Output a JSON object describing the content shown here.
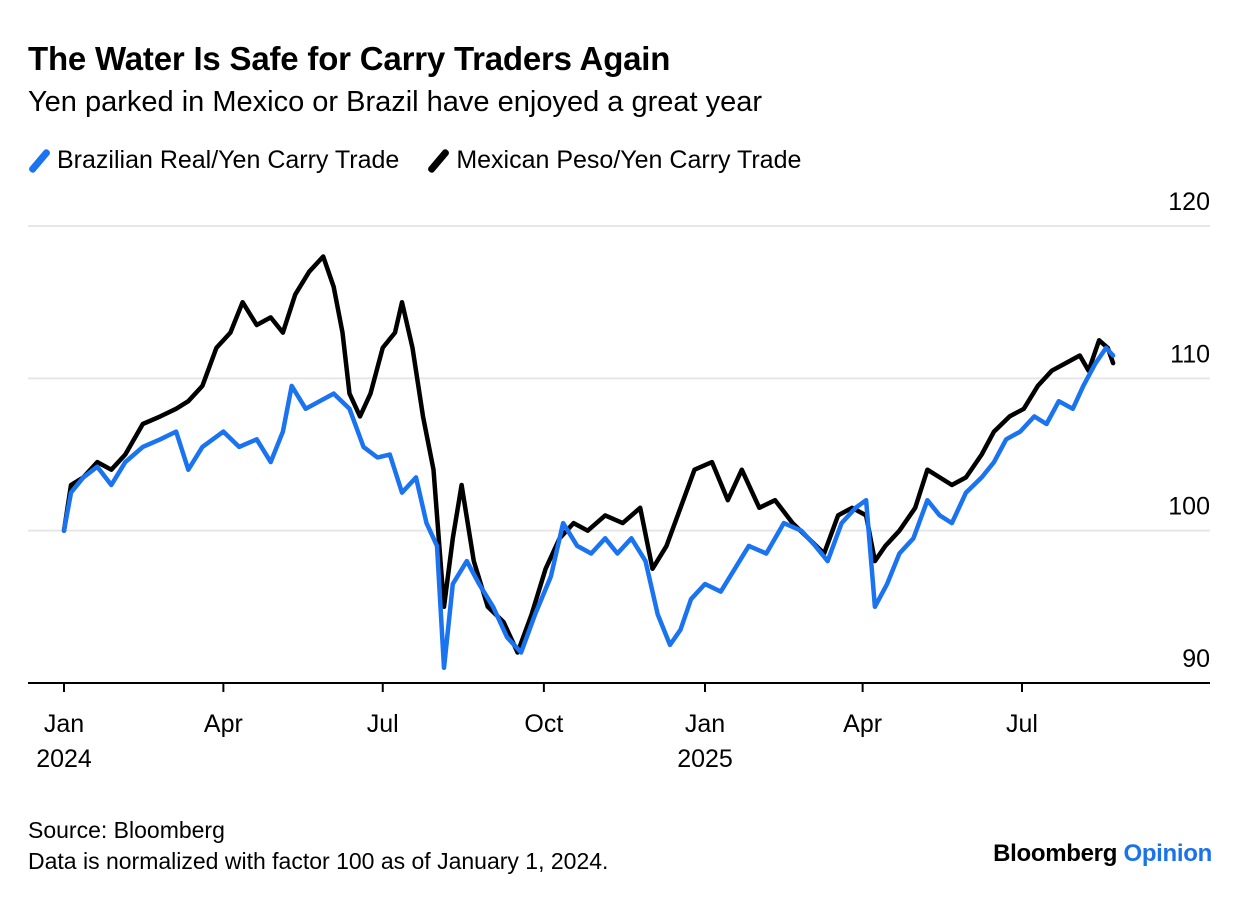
{
  "header": {
    "title": "The Water Is Safe for Carry Traders Again",
    "subtitle": "Yen parked in Mexico or Brazil have enjoyed a great year"
  },
  "legend": {
    "items": [
      {
        "label": "Brazilian Real/Yen Carry Trade",
        "color": "#1a73f0"
      },
      {
        "label": "Mexican Peso/Yen Carry Trade",
        "color": "#000000"
      }
    ]
  },
  "footer": {
    "source": "Source: Bloomberg",
    "note": "Data is normalized with factor 100 as of January 1, 2024.",
    "brand_main": "Bloomberg",
    "brand_accent": "Opinion"
  },
  "chart_data": {
    "type": "line",
    "title": "The Water Is Safe for Carry Traders Again",
    "subtitle": "Yen parked in Mexico or Brazil have enjoyed a great year",
    "xlabel": "",
    "ylabel": "",
    "ylim": [
      90,
      120
    ],
    "yticks": [
      90,
      100,
      110,
      120
    ],
    "xlim": [
      "2024-01-01",
      "2025-10-01"
    ],
    "xticks": [
      {
        "date": "2024-01-01",
        "label": "Jan",
        "year": "2024"
      },
      {
        "date": "2024-04-01",
        "label": "Apr",
        "year": ""
      },
      {
        "date": "2024-07-01",
        "label": "Jul",
        "year": ""
      },
      {
        "date": "2024-10-01",
        "label": "Oct",
        "year": ""
      },
      {
        "date": "2025-01-01",
        "label": "Jan",
        "year": "2025"
      },
      {
        "date": "2025-04-01",
        "label": "Apr",
        "year": ""
      },
      {
        "date": "2025-07-01",
        "label": "Jul",
        "year": ""
      }
    ],
    "grid": true,
    "legend_position": "top-left",
    "series": [
      {
        "name": "Brazilian Real/Yen Carry Trade",
        "color": "#1a73f0",
        "points": [
          [
            "2024-01-01",
            100.0
          ],
          [
            "2024-01-05",
            102.5
          ],
          [
            "2024-01-12",
            103.5
          ],
          [
            "2024-01-20",
            104.2
          ],
          [
            "2024-01-28",
            103.0
          ],
          [
            "2024-02-05",
            104.5
          ],
          [
            "2024-02-15",
            105.5
          ],
          [
            "2024-02-25",
            106.0
          ],
          [
            "2024-03-05",
            106.5
          ],
          [
            "2024-03-12",
            104.0
          ],
          [
            "2024-03-20",
            105.5
          ],
          [
            "2024-04-01",
            106.5
          ],
          [
            "2024-04-10",
            105.5
          ],
          [
            "2024-04-20",
            106.0
          ],
          [
            "2024-04-28",
            104.5
          ],
          [
            "2024-05-05",
            106.5
          ],
          [
            "2024-05-10",
            109.5
          ],
          [
            "2024-05-18",
            108.0
          ],
          [
            "2024-05-26",
            108.5
          ],
          [
            "2024-06-03",
            109.0
          ],
          [
            "2024-06-12",
            108.0
          ],
          [
            "2024-06-20",
            105.5
          ],
          [
            "2024-06-28",
            104.8
          ],
          [
            "2024-07-05",
            105.0
          ],
          [
            "2024-07-12",
            102.5
          ],
          [
            "2024-07-20",
            103.5
          ],
          [
            "2024-07-26",
            100.5
          ],
          [
            "2024-08-01",
            99.0
          ],
          [
            "2024-08-05",
            91.0
          ],
          [
            "2024-08-10",
            96.5
          ],
          [
            "2024-08-18",
            98.0
          ],
          [
            "2024-08-25",
            96.5
          ],
          [
            "2024-09-02",
            95.0
          ],
          [
            "2024-09-10",
            93.0
          ],
          [
            "2024-09-18",
            92.0
          ],
          [
            "2024-09-26",
            94.5
          ],
          [
            "2024-10-05",
            97.0
          ],
          [
            "2024-10-12",
            100.5
          ],
          [
            "2024-10-20",
            99.0
          ],
          [
            "2024-10-28",
            98.5
          ],
          [
            "2024-11-05",
            99.5
          ],
          [
            "2024-11-12",
            98.5
          ],
          [
            "2024-11-20",
            99.5
          ],
          [
            "2024-11-28",
            98.0
          ],
          [
            "2024-12-05",
            94.5
          ],
          [
            "2024-12-12",
            92.5
          ],
          [
            "2024-12-18",
            93.5
          ],
          [
            "2024-12-24",
            95.5
          ],
          [
            "2025-01-01",
            96.5
          ],
          [
            "2025-01-10",
            96.0
          ],
          [
            "2025-01-18",
            97.5
          ],
          [
            "2025-01-26",
            99.0
          ],
          [
            "2025-02-05",
            98.5
          ],
          [
            "2025-02-15",
            100.5
          ],
          [
            "2025-02-25",
            100.0
          ],
          [
            "2025-03-05",
            99.0
          ],
          [
            "2025-03-12",
            98.0
          ],
          [
            "2025-03-20",
            100.5
          ],
          [
            "2025-03-28",
            101.5
          ],
          [
            "2025-04-03",
            102.0
          ],
          [
            "2025-04-08",
            95.0
          ],
          [
            "2025-04-15",
            96.5
          ],
          [
            "2025-04-22",
            98.5
          ],
          [
            "2025-04-30",
            99.5
          ],
          [
            "2025-05-08",
            102.0
          ],
          [
            "2025-05-15",
            101.0
          ],
          [
            "2025-05-22",
            100.5
          ],
          [
            "2025-05-30",
            102.5
          ],
          [
            "2025-06-08",
            103.5
          ],
          [
            "2025-06-15",
            104.5
          ],
          [
            "2025-06-22",
            106.0
          ],
          [
            "2025-06-30",
            106.5
          ],
          [
            "2025-07-08",
            107.5
          ],
          [
            "2025-07-15",
            107.0
          ],
          [
            "2025-07-22",
            108.5
          ],
          [
            "2025-07-30",
            108.0
          ],
          [
            "2025-08-05",
            109.5
          ],
          [
            "2025-08-12",
            111.0
          ],
          [
            "2025-08-18",
            112.0
          ],
          [
            "2025-08-22",
            111.5
          ]
        ]
      },
      {
        "name": "Mexican Peso/Yen Carry Trade",
        "color": "#000000",
        "points": [
          [
            "2024-01-01",
            100.0
          ],
          [
            "2024-01-05",
            103.0
          ],
          [
            "2024-01-12",
            103.5
          ],
          [
            "2024-01-20",
            104.5
          ],
          [
            "2024-01-28",
            104.0
          ],
          [
            "2024-02-05",
            105.0
          ],
          [
            "2024-02-15",
            107.0
          ],
          [
            "2024-02-25",
            107.5
          ],
          [
            "2024-03-05",
            108.0
          ],
          [
            "2024-03-12",
            108.5
          ],
          [
            "2024-03-20",
            109.5
          ],
          [
            "2024-03-28",
            112.0
          ],
          [
            "2024-04-05",
            113.0
          ],
          [
            "2024-04-12",
            115.0
          ],
          [
            "2024-04-20",
            113.5
          ],
          [
            "2024-04-28",
            114.0
          ],
          [
            "2024-05-05",
            113.0
          ],
          [
            "2024-05-12",
            115.5
          ],
          [
            "2024-05-20",
            117.0
          ],
          [
            "2024-05-28",
            118.0
          ],
          [
            "2024-06-03",
            116.0
          ],
          [
            "2024-06-08",
            113.0
          ],
          [
            "2024-06-12",
            109.0
          ],
          [
            "2024-06-18",
            107.5
          ],
          [
            "2024-06-24",
            109.0
          ],
          [
            "2024-07-01",
            112.0
          ],
          [
            "2024-07-08",
            113.0
          ],
          [
            "2024-07-12",
            115.0
          ],
          [
            "2024-07-18",
            112.0
          ],
          [
            "2024-07-24",
            107.5
          ],
          [
            "2024-07-30",
            104.0
          ],
          [
            "2024-08-05",
            95.0
          ],
          [
            "2024-08-10",
            99.5
          ],
          [
            "2024-08-15",
            103.0
          ],
          [
            "2024-08-22",
            98.0
          ],
          [
            "2024-08-30",
            95.0
          ],
          [
            "2024-09-08",
            94.0
          ],
          [
            "2024-09-16",
            92.0
          ],
          [
            "2024-09-24",
            94.5
          ],
          [
            "2024-10-02",
            97.5
          ],
          [
            "2024-10-10",
            99.5
          ],
          [
            "2024-10-18",
            100.5
          ],
          [
            "2024-10-26",
            100.0
          ],
          [
            "2024-11-05",
            101.0
          ],
          [
            "2024-11-15",
            100.5
          ],
          [
            "2024-11-25",
            101.5
          ],
          [
            "2024-12-02",
            97.5
          ],
          [
            "2024-12-10",
            99.0
          ],
          [
            "2024-12-18",
            101.5
          ],
          [
            "2024-12-26",
            104.0
          ],
          [
            "2025-01-05",
            104.5
          ],
          [
            "2025-01-14",
            102.0
          ],
          [
            "2025-01-22",
            104.0
          ],
          [
            "2025-02-01",
            101.5
          ],
          [
            "2025-02-10",
            102.0
          ],
          [
            "2025-02-20",
            100.5
          ],
          [
            "2025-03-01",
            99.5
          ],
          [
            "2025-03-10",
            98.5
          ],
          [
            "2025-03-18",
            101.0
          ],
          [
            "2025-03-26",
            101.5
          ],
          [
            "2025-04-03",
            101.0
          ],
          [
            "2025-04-08",
            98.0
          ],
          [
            "2025-04-14",
            99.0
          ],
          [
            "2025-04-22",
            100.0
          ],
          [
            "2025-05-01",
            101.5
          ],
          [
            "2025-05-08",
            104.0
          ],
          [
            "2025-05-15",
            103.5
          ],
          [
            "2025-05-22",
            103.0
          ],
          [
            "2025-05-30",
            103.5
          ],
          [
            "2025-06-08",
            105.0
          ],
          [
            "2025-06-15",
            106.5
          ],
          [
            "2025-06-24",
            107.5
          ],
          [
            "2025-07-02",
            108.0
          ],
          [
            "2025-07-10",
            109.5
          ],
          [
            "2025-07-18",
            110.5
          ],
          [
            "2025-07-26",
            111.0
          ],
          [
            "2025-08-03",
            111.5
          ],
          [
            "2025-08-08",
            110.5
          ],
          [
            "2025-08-14",
            112.5
          ],
          [
            "2025-08-19",
            112.0
          ],
          [
            "2025-08-22",
            111.0
          ]
        ]
      }
    ]
  }
}
